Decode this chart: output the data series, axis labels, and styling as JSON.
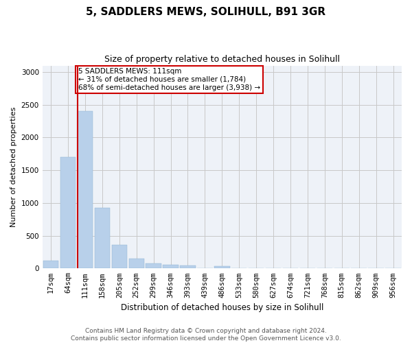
{
  "title": "5, SADDLERS MEWS, SOLIHULL, B91 3GR",
  "subtitle": "Size of property relative to detached houses in Solihull",
  "xlabel": "Distribution of detached houses by size in Solihull",
  "ylabel": "Number of detached properties",
  "categories": [
    "17sqm",
    "64sqm",
    "111sqm",
    "158sqm",
    "205sqm",
    "252sqm",
    "299sqm",
    "346sqm",
    "393sqm",
    "439sqm",
    "486sqm",
    "533sqm",
    "580sqm",
    "627sqm",
    "674sqm",
    "721sqm",
    "768sqm",
    "815sqm",
    "862sqm",
    "909sqm",
    "956sqm"
  ],
  "values": [
    120,
    1700,
    2400,
    930,
    360,
    150,
    80,
    60,
    40,
    0,
    35,
    0,
    0,
    0,
    0,
    0,
    0,
    0,
    0,
    0,
    0
  ],
  "bar_color": "#b8d0ea",
  "highlight_bar_index": 2,
  "vline_color": "#cc0000",
  "annotation_text": "5 SADDLERS MEWS: 111sqm\n← 31% of detached houses are smaller (1,784)\n68% of semi-detached houses are larger (3,938) →",
  "annotation_box_color": "#cc0000",
  "annotation_bg": "#ffffff",
  "ylim": [
    0,
    3100
  ],
  "yticks": [
    0,
    500,
    1000,
    1500,
    2000,
    2500,
    3000
  ],
  "footer_line1": "Contains HM Land Registry data © Crown copyright and database right 2024.",
  "footer_line2": "Contains public sector information licensed under the Open Government Licence v3.0.",
  "bg_color": "#ffffff",
  "ax_bg_color": "#eef2f8",
  "grid_color": "#c8c8c8",
  "title_fontsize": 11,
  "subtitle_fontsize": 9,
  "ylabel_fontsize": 8,
  "xlabel_fontsize": 8.5,
  "tick_fontsize": 7.5,
  "annotation_fontsize": 7.5,
  "footer_fontsize": 6.5
}
